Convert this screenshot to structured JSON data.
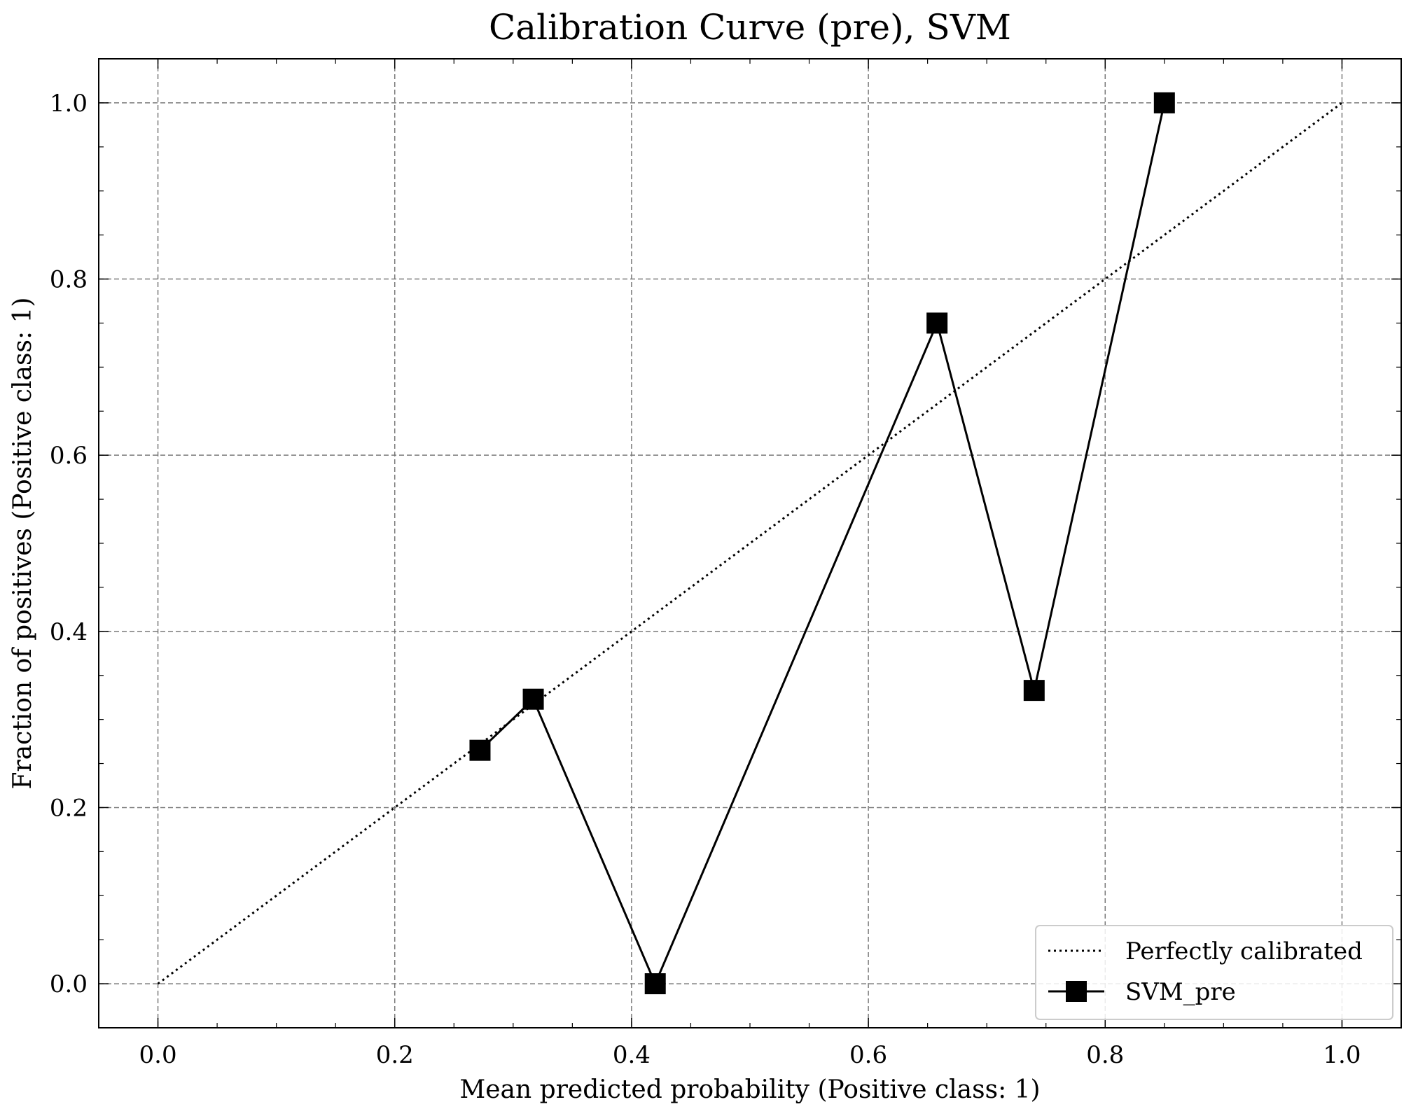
{
  "chart_data": {
    "type": "line",
    "title": "Calibration Curve (pre), SVM",
    "xlabel": "Mean predicted probability (Positive class: 1)",
    "ylabel": "Fraction of positives (Positive class: 1)",
    "xlim": [
      -0.05,
      1.05
    ],
    "ylim": [
      -0.05,
      1.05
    ],
    "xticks": [
      "0.0",
      "0.2",
      "0.4",
      "0.6",
      "0.8",
      "1.0"
    ],
    "yticks": [
      "0.0",
      "0.2",
      "0.4",
      "0.6",
      "0.8",
      "1.0"
    ],
    "grid": true,
    "legend_position": "bottom-right",
    "series": [
      {
        "name": "Perfectly calibrated",
        "style": "dotted",
        "color": "#000000",
        "x": [
          0.0,
          1.0
        ],
        "y": [
          0.0,
          1.0
        ]
      },
      {
        "name": "SVM_pre",
        "style": "solid",
        "marker": "square",
        "color": "#000000",
        "x": [
          0.272,
          0.317,
          0.42,
          0.658,
          0.74,
          0.85
        ],
        "y": [
          0.265,
          0.323,
          0.0,
          0.75,
          0.333,
          1.0
        ]
      }
    ]
  }
}
